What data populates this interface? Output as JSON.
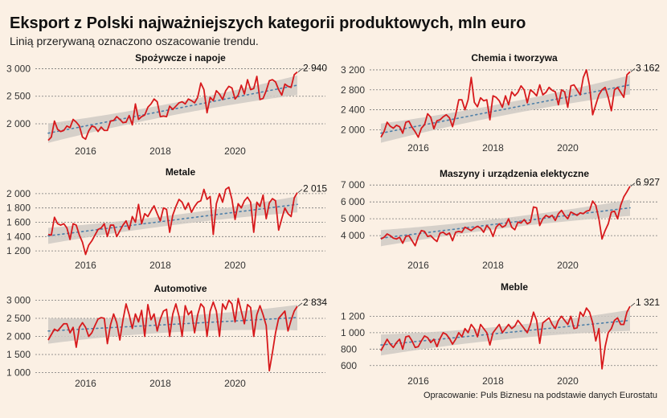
{
  "title": "Eksport z Polski najważniejszych kategorii produktowych, mln euro",
  "subtitle": "Linią przerywaną oznaczono oszacowanie trendu.",
  "source": "Opracowanie: Puls Biznesu na podstawie danych Eurostatu",
  "colors": {
    "background": "#fbf0e4",
    "line": "#d7191c",
    "trend": "#4d7fa8",
    "band": "#cfcac4"
  },
  "chart_data": [
    {
      "type": "line",
      "title": "Spożywcze i napoje",
      "x_start": "2015-01",
      "x_ticks": [
        "2016",
        "2018",
        "2020"
      ],
      "y_ticks": [
        "2 000",
        "2 500",
        "3 000"
      ],
      "y_tick_values": [
        2000,
        2500,
        3000
      ],
      "ylim": [
        1650,
        3050
      ],
      "end_label": "2 940",
      "trend": [
        1830,
        2700
      ],
      "band": 110,
      "values": [
        1700,
        1760,
        2050,
        1900,
        1860,
        1880,
        1960,
        1930,
        2080,
        2030,
        1960,
        1760,
        1720,
        1870,
        1960,
        1940,
        1860,
        1940,
        1880,
        1880,
        2050,
        2060,
        2130,
        2080,
        2020,
        2030,
        2150,
        1980,
        2360,
        2080,
        2130,
        2160,
        2300,
        2360,
        2450,
        2400,
        2130,
        2140,
        2130,
        2320,
        2260,
        2320,
        2380,
        2400,
        2360,
        2450,
        2420,
        2380,
        2480,
        2740,
        2620,
        2200,
        2480,
        2420,
        2600,
        2540,
        2440,
        2600,
        2680,
        2650,
        2450,
        2520,
        2700,
        2540,
        2800,
        2620,
        2640,
        2860,
        2440,
        2460,
        2600,
        2780,
        2800,
        2760,
        2620,
        2520,
        2720,
        2680,
        2660,
        2890,
        2940
      ]
    },
    {
      "type": "line",
      "title": "Metale",
      "x_start": "2015-01",
      "x_ticks": [
        "2016",
        "2018",
        "2020"
      ],
      "y_ticks": [
        "1 200",
        "1 400",
        "1 600",
        "1 800",
        "2 000"
      ],
      "y_tick_values": [
        1200,
        1400,
        1600,
        1800,
        2000
      ],
      "ylim": [
        1100,
        2100
      ],
      "end_label": "2 015",
      "trend": [
        1410,
        1850
      ],
      "band": 70,
      "values": [
        1430,
        1420,
        1670,
        1580,
        1560,
        1580,
        1520,
        1360,
        1580,
        1560,
        1420,
        1320,
        1150,
        1280,
        1340,
        1420,
        1500,
        1520,
        1580,
        1400,
        1560,
        1560,
        1400,
        1480,
        1560,
        1620,
        1500,
        1680,
        1600,
        1850,
        1580,
        1720,
        1680,
        1760,
        1830,
        1720,
        1620,
        1800,
        1780,
        1460,
        1700,
        1820,
        1920,
        1880,
        1780,
        1870,
        1740,
        1820,
        1880,
        1900,
        2060,
        1920,
        1960,
        1430,
        1860,
        2000,
        1880,
        2060,
        2090,
        1920,
        1640,
        1860,
        1800,
        1900,
        1950,
        1880,
        1460,
        1880,
        1820,
        1980,
        1650,
        1870,
        1930,
        1900,
        1490,
        1650,
        1800,
        1720,
        1680,
        1940,
        2015
      ]
    },
    {
      "type": "line",
      "title": "Automotive",
      "x_start": "2015-01",
      "x_ticks": [
        "2016",
        "2018",
        "2020"
      ],
      "y_ticks": [
        "1 000",
        "1 500",
        "2 000",
        "2 500",
        "3 000"
      ],
      "y_tick_values": [
        1000,
        1500,
        2000,
        2500,
        3000
      ],
      "ylim": [
        900,
        3100
      ],
      "end_label": "2 834",
      "trend": [
        2150,
        2520
      ],
      "band": 220,
      "values": [
        1900,
        2050,
        2200,
        2150,
        2250,
        2350,
        2350,
        2100,
        2250,
        1700,
        2250,
        2380,
        2250,
        2000,
        2100,
        2300,
        2480,
        2520,
        2500,
        1800,
        2320,
        2620,
        2380,
        1900,
        2450,
        2900,
        2600,
        2220,
        2620,
        2400,
        2720,
        2000,
        2880,
        2460,
        2620,
        2150,
        2480,
        2700,
        2750,
        2000,
        2620,
        2900,
        2560,
        2000,
        2850,
        2600,
        2700,
        2100,
        2600,
        2900,
        2800,
        2000,
        2700,
        2950,
        2700,
        2000,
        2900,
        2750,
        3000,
        2900,
        2400,
        3050,
        2700,
        2350,
        2880,
        2800,
        2000,
        2600,
        2850,
        2600,
        2300,
        1050,
        1550,
        2100,
        2500,
        2600,
        2700,
        2150,
        2450,
        2700,
        2834
      ]
    },
    {
      "type": "line",
      "title": "Chemia i tworzywa",
      "x_start": "2015-01",
      "x_ticks": [
        "2016",
        "2018",
        "2020"
      ],
      "y_ticks": [
        "2 000",
        "2 400",
        "2 800",
        "3 200"
      ],
      "y_tick_values": [
        2000,
        2400,
        2800,
        3200
      ],
      "ylim": [
        1780,
        3280
      ],
      "end_label": "3 162",
      "trend": [
        1930,
        2900
      ],
      "band": 120,
      "values": [
        1850,
        1960,
        2150,
        2070,
        2030,
        2090,
        2060,
        1930,
        2150,
        2170,
        2050,
        1960,
        1850,
        2030,
        2100,
        2320,
        2250,
        2020,
        2180,
        2200,
        2260,
        2300,
        2240,
        2060,
        2300,
        2600,
        2600,
        2400,
        2600,
        3050,
        2550,
        2460,
        2640,
        2580,
        2600,
        2200,
        2680,
        2650,
        2580,
        2450,
        2680,
        2500,
        2760,
        2680,
        2750,
        2880,
        2800,
        2540,
        2800,
        2750,
        2680,
        2900,
        2700,
        2750,
        2850,
        2790,
        2760,
        2500,
        2800,
        2760,
        2450,
        2880,
        2900,
        2800,
        2700,
        3050,
        3200,
        2880,
        2300,
        2500,
        2700,
        2800,
        2850,
        2650,
        2380,
        2800,
        2850,
        2750,
        2650,
        3100,
        3162
      ]
    },
    {
      "type": "line",
      "title": "Maszyny i urządzenia elektyczne",
      "x_start": "2015-01",
      "x_ticks": [
        "2016",
        "2018",
        "2020"
      ],
      "y_ticks": [
        "4 000",
        "5 000",
        "6 000",
        "7 000"
      ],
      "y_tick_values": [
        4000,
        5000,
        6000,
        7000
      ],
      "ylim": [
        3100,
        7200
      ],
      "end_label": "6 927",
      "trend": [
        3850,
        5650
      ],
      "band": 300,
      "values": [
        3800,
        3900,
        4100,
        4000,
        3850,
        3800,
        3900,
        3550,
        3950,
        4000,
        3700,
        3400,
        3950,
        4300,
        4250,
        3950,
        4000,
        3800,
        3650,
        4150,
        4200,
        4050,
        4150,
        3700,
        4200,
        4250,
        4200,
        4500,
        4400,
        4300,
        4450,
        4550,
        4450,
        4200,
        4600,
        4400,
        3950,
        4500,
        4700,
        4500,
        4600,
        5000,
        4500,
        4350,
        4800,
        4750,
        4950,
        4700,
        4800,
        5700,
        5650,
        4600,
        5000,
        5200,
        5100,
        5200,
        4900,
        5300,
        5500,
        5200,
        5000,
        5400,
        5300,
        5200,
        5350,
        5300,
        5450,
        5500,
        6050,
        5800,
        5000,
        3800,
        4300,
        4700,
        5400,
        5450,
        5000,
        5800,
        6300,
        6600,
        6927
      ]
    },
    {
      "type": "line",
      "title": "Meble",
      "x_start": "2015-01",
      "x_ticks": [
        "2016",
        "2018",
        "2020"
      ],
      "y_ticks": [
        "600",
        "800",
        "1 000",
        "1 200"
      ],
      "y_tick_values": [
        600,
        800,
        1000,
        1200
      ],
      "ylim": [
        500,
        1380
      ],
      "end_label": "1 321",
      "trend": [
        850,
        1150
      ],
      "band": 80,
      "values": [
        780,
        850,
        920,
        860,
        820,
        880,
        920,
        800,
        950,
        960,
        900,
        820,
        830,
        900,
        960,
        940,
        880,
        920,
        830,
        930,
        1000,
        980,
        930,
        860,
        920,
        1000,
        950,
        1050,
        1000,
        1100,
        1050,
        950,
        1100,
        1050,
        1000,
        850,
        1000,
        1050,
        1100,
        1000,
        1050,
        1100,
        1050,
        1080,
        1150,
        1100,
        1050,
        1000,
        1100,
        1250,
        1150,
        870,
        1120,
        1150,
        1180,
        1100,
        1050,
        1150,
        1200,
        1150,
        1100,
        1200,
        1050,
        1060,
        1250,
        1200,
        1300,
        1250,
        1120,
        900,
        1050,
        560,
        830,
        1000,
        1050,
        1150,
        1180,
        1100,
        1100,
        1250,
        1321
      ]
    }
  ]
}
